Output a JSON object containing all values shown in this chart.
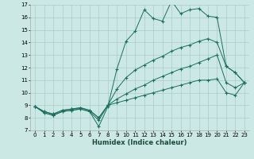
{
  "xlabel": "Humidex (Indice chaleur)",
  "background_color": "#cce8e4",
  "grid_color": "#aacccc",
  "line_color": "#1a7060",
  "xmin": 0,
  "xmax": 23,
  "ymin": 7,
  "ymax": 17,
  "line1_x": [
    0,
    1,
    2,
    3,
    4,
    5,
    6,
    7,
    8,
    9,
    10,
    11,
    12,
    13,
    14,
    15,
    16,
    17,
    18,
    19,
    20,
    21,
    22,
    23
  ],
  "line1_y": [
    8.9,
    8.4,
    8.2,
    8.5,
    8.6,
    8.7,
    8.5,
    7.3,
    8.9,
    11.9,
    14.1,
    14.9,
    16.6,
    15.9,
    15.7,
    17.3,
    16.3,
    16.6,
    16.7,
    16.1,
    16.0,
    12.1,
    11.6,
    10.8
  ],
  "line2_x": [
    0,
    1,
    2,
    3,
    4,
    5,
    6,
    7,
    8,
    9,
    10,
    11,
    12,
    13,
    14,
    15,
    16,
    17,
    18,
    19,
    20,
    21,
    22,
    23
  ],
  "line2_y": [
    8.9,
    8.4,
    8.2,
    8.5,
    8.6,
    8.7,
    8.5,
    7.8,
    9.0,
    10.3,
    11.2,
    11.8,
    12.2,
    12.6,
    12.9,
    13.3,
    13.6,
    13.8,
    14.1,
    14.3,
    14.0,
    12.1,
    11.6,
    10.8
  ],
  "line3_x": [
    0,
    1,
    2,
    3,
    4,
    5,
    6,
    7,
    8,
    9,
    10,
    11,
    12,
    13,
    14,
    15,
    16,
    17,
    18,
    19,
    20,
    21,
    22,
    23
  ],
  "line3_y": [
    8.9,
    8.5,
    8.3,
    8.6,
    8.7,
    8.8,
    8.6,
    8.0,
    9.0,
    9.5,
    9.9,
    10.3,
    10.6,
    11.0,
    11.3,
    11.6,
    11.9,
    12.1,
    12.4,
    12.7,
    13.0,
    10.8,
    10.4,
    10.8
  ],
  "line4_x": [
    0,
    1,
    2,
    3,
    4,
    5,
    6,
    7,
    8,
    9,
    10,
    11,
    12,
    13,
    14,
    15,
    16,
    17,
    18,
    19,
    20,
    21,
    22,
    23
  ],
  "line4_y": [
    8.9,
    8.5,
    8.3,
    8.6,
    8.7,
    8.8,
    8.6,
    8.0,
    9.0,
    9.2,
    9.4,
    9.6,
    9.8,
    10.0,
    10.2,
    10.4,
    10.6,
    10.8,
    11.0,
    11.0,
    11.1,
    10.0,
    9.8,
    10.8
  ]
}
